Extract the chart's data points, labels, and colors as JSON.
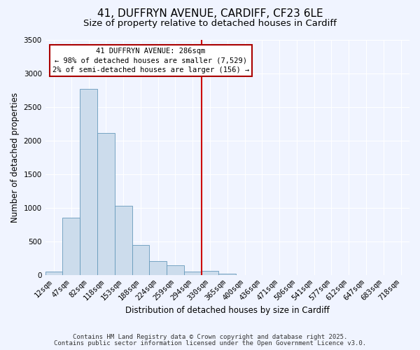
{
  "title": "41, DUFFRYN AVENUE, CARDIFF, CF23 6LE",
  "subtitle": "Size of property relative to detached houses in Cardiff",
  "xlabel": "Distribution of detached houses by size in Cardiff",
  "ylabel": "Number of detached properties",
  "bar_color": "#ccdcec",
  "bar_edge_color": "#6699bb",
  "background_color": "#f0f4ff",
  "grid_color": "#ffffff",
  "bin_labels": [
    "12sqm",
    "47sqm",
    "82sqm",
    "118sqm",
    "153sqm",
    "188sqm",
    "224sqm",
    "259sqm",
    "294sqm",
    "330sqm",
    "365sqm",
    "400sqm",
    "436sqm",
    "471sqm",
    "506sqm",
    "541sqm",
    "577sqm",
    "612sqm",
    "647sqm",
    "683sqm",
    "718sqm"
  ],
  "bar_values": [
    55,
    850,
    2770,
    2110,
    1030,
    450,
    205,
    150,
    55,
    60,
    20,
    0,
    0,
    0,
    0,
    0,
    0,
    0,
    0,
    0,
    0
  ],
  "vline_bin_index": 8.5,
  "vline_label": "41 DUFFRYN AVENUE: 286sqm",
  "annotation_line1": "← 98% of detached houses are smaller (7,529)",
  "annotation_line2": "2% of semi-detached houses are larger (156) →",
  "ylim": [
    0,
    3500
  ],
  "yticks": [
    0,
    500,
    1000,
    1500,
    2000,
    2500,
    3000,
    3500
  ],
  "footnote1": "Contains HM Land Registry data © Crown copyright and database right 2025.",
  "footnote2": "Contains public sector information licensed under the Open Government Licence v3.0.",
  "annotation_box_color": "#aa0000",
  "vline_color": "#cc0000",
  "title_fontsize": 11,
  "subtitle_fontsize": 9.5,
  "label_fontsize": 8.5,
  "tick_fontsize": 7.5,
  "annotation_fontsize": 7.5,
  "footnote_fontsize": 6.5
}
